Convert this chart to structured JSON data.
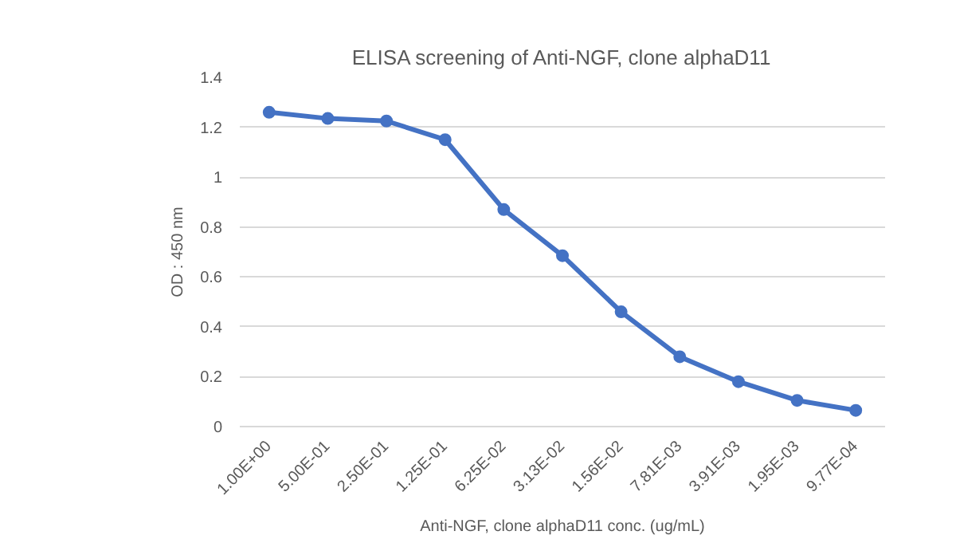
{
  "chart_data": {
    "type": "line",
    "title": "ELISA screening of Anti-NGF, clone alphaD11",
    "xlabel": "Anti-NGF, clone alphaD11 conc. (ug/mL)",
    "ylabel": "OD : 450 nm",
    "categories": [
      "1.00E+00",
      "5.00E-01",
      "2.50E-01",
      "1.25E-01",
      "6.25E-02",
      "3.13E-02",
      "1.56E-02",
      "7.81E-03",
      "3.91E-03",
      "1.95E-03",
      "9.77E-04"
    ],
    "series": [
      {
        "color": "#4472c4",
        "values": [
          1.26,
          1.235,
          1.225,
          1.15,
          0.87,
          0.685,
          0.46,
          0.28,
          0.18,
          0.105,
          0.065
        ]
      }
    ],
    "ylim": [
      0,
      1.4
    ],
    "yticks": [
      0,
      0.2,
      0.4,
      0.6,
      0.8,
      1,
      1.2,
      1.4
    ],
    "grid": "y",
    "marker": "circle",
    "line_style": "solid"
  }
}
